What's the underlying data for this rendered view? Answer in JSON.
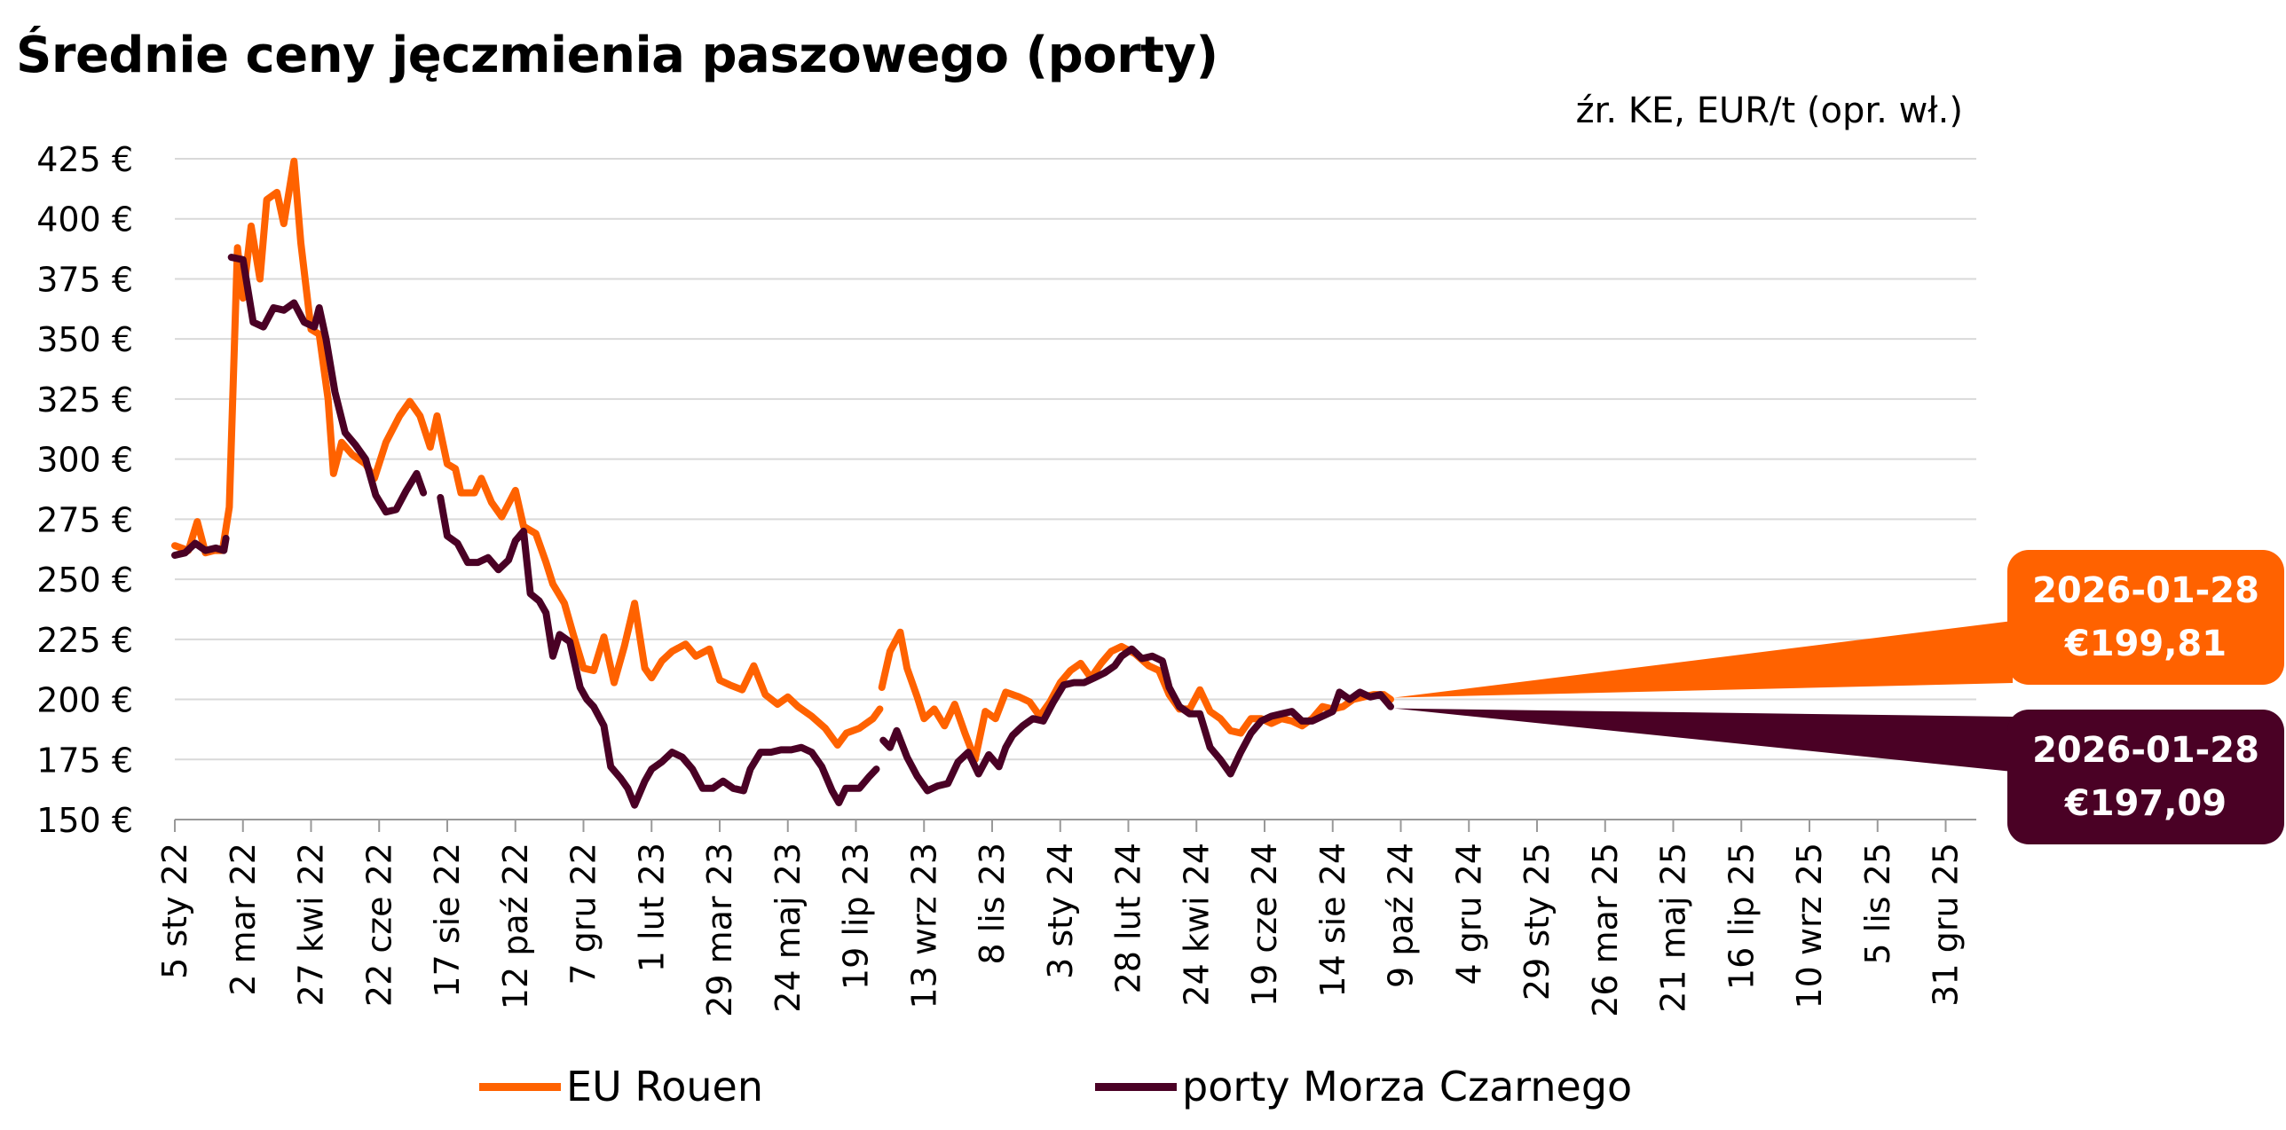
{
  "header": {
    "title": "Średnie ceny jęczmienia paszowego (porty)",
    "source": "źr. KE,  EUR/t (opr. wł.)"
  },
  "colors": {
    "eu": "#FF6200",
    "bs": "#4A0125",
    "grid": "#D9D9D9",
    "axis": "#999999"
  },
  "callouts": {
    "eu": {
      "date": "2026-01-28",
      "value": "€199,81"
    },
    "bs": {
      "date": "2026-01-28",
      "value": "€197,09"
    }
  },
  "chart_data": {
    "type": "line",
    "title": "Średnie ceny jęczmienia paszowego (porty)",
    "ylim": [
      150,
      425
    ],
    "y_ticks": [
      "425 €",
      "400 €",
      "375 €",
      "350 €",
      "325 €",
      "300 €",
      "275 €",
      "250 €",
      "225 €",
      "200 €",
      "175 €",
      "150 €"
    ],
    "x_ticks": [
      "5 sty 22",
      "2 mar 22",
      "27 kwi 22",
      "22 cze 22",
      "17 sie 22",
      "12 paź 22",
      "7 gru 22",
      "1 lut 23",
      "29 mar 23",
      "24 maj 23",
      "19 lip 23",
      "13 wrz 23",
      "8 lis 23",
      "3 sty 24",
      "28 lut 24",
      "24 kwi 24",
      "19 cze 24",
      "14 sie 24",
      "9 paź 24",
      "4 gru 24",
      "29 sty 25",
      "26 mar 25",
      "21 maj 25",
      "16 lip 25",
      "10 wrz 25",
      "5 lis 25",
      "31 gru 25"
    ],
    "grid": true,
    "legend": "bottom",
    "series": [
      {
        "name": "EU Rouen",
        "color": "#FF6200",
        "points": [
          [
            0,
            264
          ],
          [
            0.2,
            262
          ],
          [
            0.33,
            274
          ],
          [
            0.45,
            261
          ],
          [
            0.58,
            262
          ],
          [
            0.7,
            262
          ],
          [
            0.8,
            280
          ],
          [
            0.92,
            388
          ],
          [
            1.0,
            367
          ],
          [
            1.12,
            397
          ],
          [
            1.25,
            375
          ],
          [
            1.35,
            408
          ],
          [
            1.5,
            411
          ],
          [
            1.6,
            398
          ],
          [
            1.75,
            424
          ],
          [
            1.85,
            390
          ],
          [
            2.0,
            354
          ],
          [
            2.12,
            352
          ],
          [
            2.25,
            325
          ],
          [
            2.33,
            294
          ],
          [
            2.45,
            307
          ],
          [
            2.6,
            302
          ],
          [
            2.8,
            298
          ],
          [
            2.93,
            292
          ],
          [
            3.1,
            307
          ],
          [
            3.3,
            318
          ],
          [
            3.45,
            324
          ],
          [
            3.6,
            318
          ],
          [
            3.75,
            305
          ],
          [
            3.85,
            318
          ],
          [
            4.0,
            298
          ],
          [
            4.12,
            296
          ],
          [
            4.2,
            286
          ],
          [
            4.4,
            286
          ],
          [
            4.5,
            292
          ],
          [
            4.65,
            282
          ],
          [
            4.8,
            276
          ],
          [
            5.0,
            287
          ],
          [
            5.12,
            272
          ],
          [
            5.3,
            269
          ],
          [
            5.45,
            257
          ],
          [
            5.55,
            248
          ],
          [
            5.72,
            240
          ],
          [
            5.85,
            227
          ],
          [
            6.0,
            213
          ],
          [
            6.15,
            212
          ],
          [
            6.3,
            226
          ],
          [
            6.45,
            207
          ],
          [
            6.6,
            222
          ],
          [
            6.75,
            240
          ],
          [
            6.9,
            213
          ],
          [
            7.0,
            209
          ],
          [
            7.15,
            216
          ],
          [
            7.3,
            220
          ],
          [
            7.5,
            223
          ],
          [
            7.65,
            218
          ],
          [
            7.85,
            221
          ],
          [
            8.0,
            208
          ],
          [
            8.15,
            206
          ],
          [
            8.33,
            204
          ],
          [
            8.5,
            214
          ],
          [
            8.67,
            202
          ],
          [
            8.85,
            198
          ],
          [
            9.0,
            201
          ],
          [
            9.15,
            197
          ],
          [
            9.35,
            193
          ],
          [
            9.55,
            188
          ],
          [
            9.73,
            181
          ],
          [
            9.86,
            186
          ],
          [
            10.05,
            188
          ],
          [
            10.25,
            192
          ],
          [
            10.35,
            196
          ],
          null,
          [
            10.38,
            205
          ],
          [
            10.5,
            220
          ],
          [
            10.65,
            228
          ],
          [
            10.75,
            213
          ],
          [
            10.9,
            201
          ],
          [
            11.0,
            192
          ],
          [
            11.15,
            196
          ],
          [
            11.3,
            189
          ],
          [
            11.45,
            198
          ],
          [
            11.6,
            186
          ],
          [
            11.75,
            175
          ],
          [
            11.9,
            195
          ],
          [
            12.05,
            192
          ],
          [
            12.2,
            203
          ],
          [
            12.4,
            201
          ],
          [
            12.55,
            199
          ],
          [
            12.7,
            193
          ],
          [
            12.85,
            199
          ],
          [
            13.0,
            207
          ],
          [
            13.15,
            212
          ],
          [
            13.3,
            215
          ],
          [
            13.45,
            209
          ],
          [
            13.6,
            215
          ],
          [
            13.75,
            220
          ],
          [
            13.9,
            222
          ],
          [
            14.1,
            219
          ],
          [
            14.3,
            214
          ],
          [
            14.45,
            212
          ],
          [
            14.6,
            202
          ],
          [
            14.75,
            196
          ],
          [
            14.9,
            196
          ],
          [
            15.05,
            204
          ],
          [
            15.2,
            195
          ],
          [
            15.35,
            192
          ],
          [
            15.5,
            187
          ],
          [
            15.65,
            186
          ],
          [
            15.8,
            192
          ],
          [
            15.95,
            192
          ],
          [
            16.1,
            190
          ],
          [
            16.25,
            192
          ],
          [
            16.4,
            191
          ],
          [
            16.55,
            189
          ],
          [
            16.7,
            192
          ],
          [
            16.85,
            197
          ],
          [
            17.0,
            196
          ],
          [
            17.15,
            197
          ],
          [
            17.3,
            200
          ],
          [
            17.45,
            201
          ],
          [
            17.6,
            202
          ],
          [
            17.75,
            202
          ],
          [
            17.85,
            200
          ]
        ]
      },
      {
        "name": "porty Morza Czarnego",
        "color": "#4A0125",
        "points": [
          [
            0,
            260
          ],
          [
            0.15,
            261
          ],
          [
            0.3,
            265
          ],
          [
            0.45,
            262
          ],
          [
            0.6,
            263
          ],
          [
            0.72,
            262
          ],
          [
            0.75,
            267
          ],
          null,
          [
            0.83,
            384
          ],
          [
            1.0,
            383
          ],
          [
            1.15,
            357
          ],
          [
            1.3,
            355
          ],
          [
            1.45,
            363
          ],
          [
            1.6,
            362
          ],
          [
            1.75,
            365
          ],
          [
            1.9,
            357
          ],
          [
            2.05,
            355
          ],
          [
            2.12,
            363
          ],
          [
            2.22,
            350
          ],
          [
            2.35,
            328
          ],
          [
            2.5,
            311
          ],
          [
            2.65,
            306
          ],
          [
            2.8,
            300
          ],
          [
            2.95,
            285
          ],
          [
            3.1,
            278
          ],
          [
            3.25,
            279
          ],
          [
            3.4,
            287
          ],
          [
            3.55,
            294
          ],
          [
            3.65,
            286
          ],
          null,
          [
            3.9,
            284
          ],
          [
            4.0,
            268
          ],
          [
            4.15,
            265
          ],
          [
            4.3,
            257
          ],
          [
            4.45,
            257
          ],
          [
            4.6,
            259
          ],
          [
            4.75,
            254
          ],
          [
            4.9,
            258
          ],
          [
            5.0,
            266
          ],
          [
            5.12,
            270
          ],
          [
            5.22,
            244
          ],
          [
            5.35,
            241
          ],
          [
            5.45,
            236
          ],
          [
            5.55,
            218
          ],
          [
            5.65,
            227
          ],
          [
            5.8,
            224
          ],
          [
            5.95,
            205
          ],
          [
            6.05,
            200
          ],
          [
            6.15,
            197
          ],
          [
            6.3,
            189
          ],
          [
            6.4,
            172
          ],
          [
            6.55,
            167
          ],
          [
            6.65,
            163
          ],
          [
            6.75,
            156
          ],
          [
            6.9,
            166
          ],
          [
            7.0,
            171
          ],
          [
            7.15,
            174
          ],
          [
            7.3,
            178
          ],
          [
            7.45,
            176
          ],
          [
            7.6,
            171
          ],
          [
            7.75,
            163
          ],
          [
            7.9,
            163
          ],
          [
            8.05,
            166
          ],
          [
            8.2,
            163
          ],
          [
            8.35,
            162
          ],
          [
            8.45,
            171
          ],
          [
            8.6,
            178
          ],
          [
            8.75,
            178
          ],
          [
            8.9,
            179
          ],
          [
            9.05,
            179
          ],
          [
            9.2,
            180
          ],
          [
            9.35,
            178
          ],
          [
            9.5,
            172
          ],
          [
            9.65,
            162
          ],
          [
            9.75,
            157
          ],
          [
            9.85,
            163
          ],
          [
            10.05,
            163
          ],
          [
            10.2,
            168
          ],
          [
            10.3,
            171
          ],
          null,
          [
            10.4,
            183
          ],
          [
            10.5,
            180
          ],
          [
            10.6,
            187
          ],
          [
            10.75,
            176
          ],
          [
            10.9,
            168
          ],
          [
            11.05,
            162
          ],
          [
            11.2,
            164
          ],
          [
            11.35,
            165
          ],
          [
            11.5,
            174
          ],
          [
            11.65,
            178
          ],
          [
            11.8,
            169
          ],
          [
            11.95,
            177
          ],
          [
            12.1,
            172
          ],
          [
            12.2,
            180
          ],
          [
            12.3,
            185
          ],
          [
            12.45,
            189
          ],
          [
            12.6,
            192
          ],
          [
            12.75,
            191
          ],
          [
            12.9,
            199
          ],
          [
            13.05,
            206
          ],
          [
            13.2,
            207
          ],
          [
            13.35,
            207
          ],
          [
            13.5,
            209
          ],
          [
            13.65,
            211
          ],
          [
            13.8,
            214
          ],
          [
            13.9,
            218
          ],
          [
            14.05,
            221
          ],
          [
            14.2,
            217
          ],
          [
            14.35,
            218
          ],
          [
            14.5,
            216
          ],
          [
            14.6,
            205
          ],
          [
            14.75,
            197
          ],
          [
            14.9,
            194
          ],
          [
            15.05,
            194
          ],
          [
            15.2,
            180
          ],
          [
            15.35,
            175
          ],
          [
            15.5,
            169
          ],
          [
            15.65,
            178
          ],
          [
            15.8,
            186
          ],
          [
            15.95,
            191
          ],
          [
            16.1,
            193
          ],
          [
            16.25,
            194
          ],
          [
            16.4,
            195
          ],
          [
            16.55,
            191
          ],
          [
            16.7,
            191
          ],
          [
            16.85,
            193
          ],
          [
            17.0,
            195
          ],
          [
            17.1,
            203
          ],
          [
            17.25,
            200
          ],
          [
            17.4,
            203
          ],
          [
            17.55,
            201
          ],
          [
            17.7,
            202
          ],
          [
            17.85,
            197
          ]
        ]
      }
    ]
  }
}
